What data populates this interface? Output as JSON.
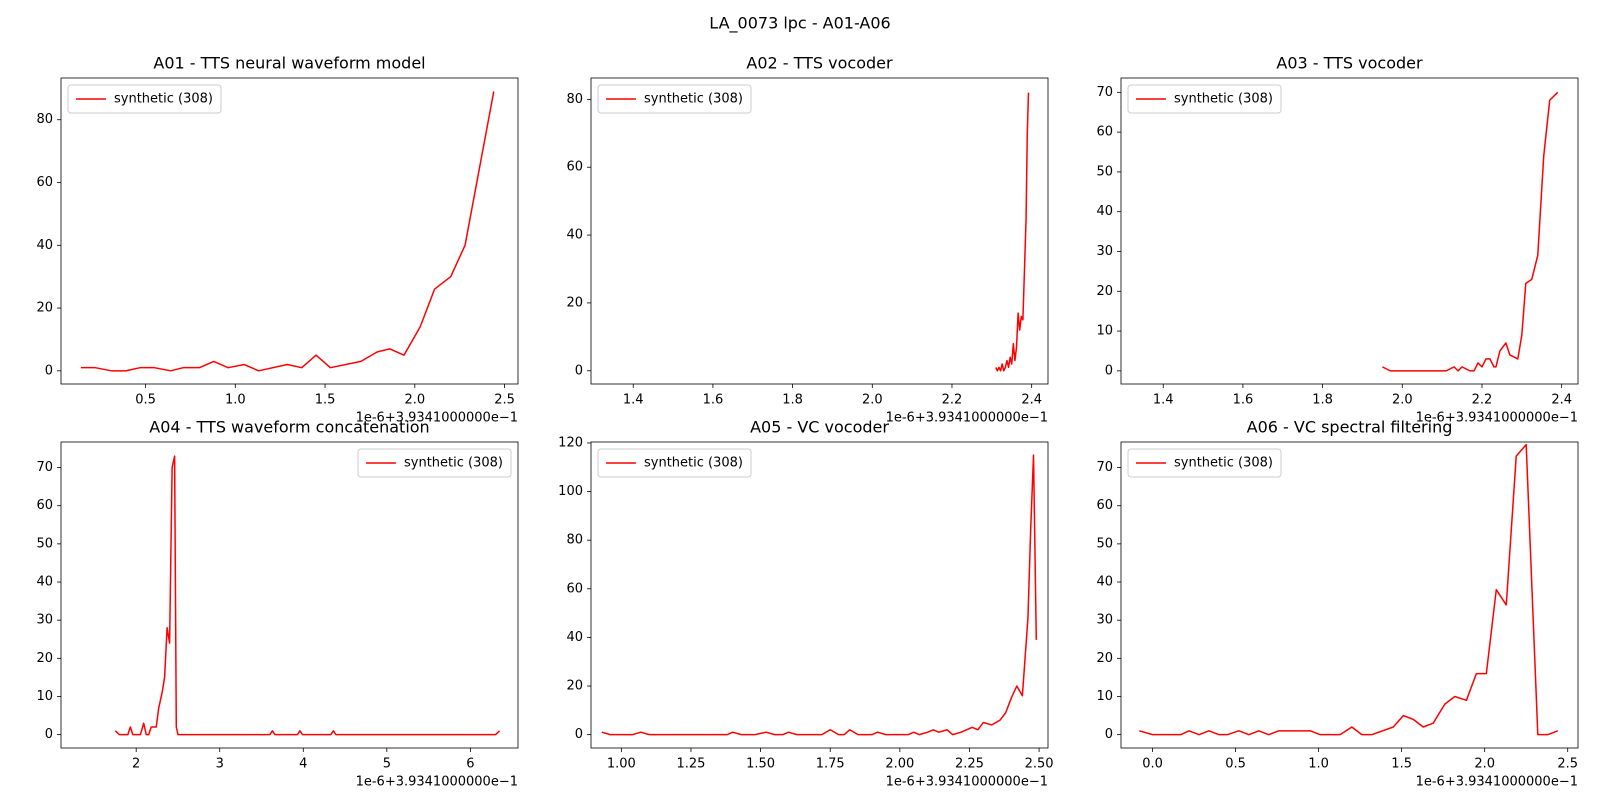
{
  "title": "LA_0073 lpc - A01-A06",
  "chart_data": [
    {
      "type": "line",
      "title": "A01 - TTS neural waveform model",
      "x_offset_label": "1e-6+3.9341000000e−1",
      "x": [
        0.14,
        0.22,
        0.31,
        0.39,
        0.47,
        0.55,
        0.64,
        0.71,
        0.8,
        0.88,
        0.96,
        1.05,
        1.13,
        1.29,
        1.37,
        1.45,
        1.53,
        1.7,
        1.79,
        1.86,
        1.94,
        2.03,
        2.11,
        2.2,
        2.28,
        2.44
      ],
      "series": [
        {
          "name": "synthetic (308)",
          "color": "#ff0000",
          "values": [
            1,
            1,
            0,
            0,
            1,
            1,
            0,
            1,
            1,
            3,
            1,
            2,
            0,
            2,
            1,
            5,
            1,
            3,
            6,
            7,
            5,
            14,
            26,
            30,
            40,
            89
          ]
        }
      ],
      "xlim": [
        0.029,
        2.575
      ],
      "ylim": [
        -4.2,
        93.3
      ],
      "xticks": [
        0.5,
        {
          "value": 1,
          "label": "1.0"
        },
        1.5,
        {
          "value": 2,
          "label": "2.0"
        },
        2.5
      ],
      "yticks": [
        0,
        20,
        40,
        60,
        80
      ],
      "legend": "upper left"
    },
    {
      "type": "line",
      "title": "A02 - TTS vocoder",
      "x_offset_label": "1e-6+3.9341000000e−1",
      "x": [
        2.31,
        2.314,
        2.318,
        2.322,
        2.326,
        2.33,
        2.334,
        2.338,
        2.342,
        2.346,
        2.35,
        2.354,
        2.358,
        2.362,
        2.366,
        2.37,
        2.374,
        2.378,
        2.386,
        2.389,
        2.392
      ],
      "series": [
        {
          "name": "synthetic (308)",
          "color": "#ff0000",
          "values": [
            1,
            0,
            1,
            0,
            2,
            0,
            1,
            3,
            1,
            4,
            2,
            8,
            3,
            7,
            17,
            12,
            16,
            15,
            45,
            70,
            82
          ]
        }
      ],
      "xlim": [
        1.294,
        2.441
      ],
      "ylim": [
        -3.9,
        86.3
      ],
      "xticks": [
        1.4,
        1.6,
        1.8,
        {
          "value": 2,
          "label": "2.0"
        },
        2.2,
        2.4
      ],
      "yticks": [
        0,
        20,
        40,
        60,
        80
      ],
      "legend": "upper left"
    },
    {
      "type": "line",
      "title": "A03 - TTS vocoder",
      "x_offset_label": "1e-6+3.9341000000e−1",
      "x": [
        1.95,
        1.97,
        2.0,
        2.03,
        2.06,
        2.09,
        2.11,
        2.13,
        2.14,
        2.15,
        2.17,
        2.18,
        2.19,
        2.2,
        2.21,
        2.22,
        2.23,
        2.235,
        2.245,
        2.26,
        2.27,
        2.29,
        2.3,
        2.31,
        2.325,
        2.34,
        2.355,
        2.37,
        2.39
      ],
      "series": [
        {
          "name": "synthetic (308)",
          "color": "#ff0000",
          "values": [
            1,
            0,
            0,
            0,
            0,
            0,
            0,
            1,
            0,
            1,
            0,
            0,
            2,
            1,
            3,
            3,
            1,
            1,
            5,
            7,
            4,
            3,
            9,
            22,
            23,
            29,
            54,
            68,
            70
          ]
        }
      ],
      "xlim": [
        1.294,
        2.441
      ],
      "ylim": [
        -3.3,
        73.6
      ],
      "xticks": [
        1.4,
        1.6,
        1.8,
        {
          "value": 2,
          "label": "2.0"
        },
        2.2,
        2.4
      ],
      "yticks": [
        0,
        10,
        20,
        30,
        40,
        50,
        60,
        70
      ],
      "legend": "upper left"
    },
    {
      "type": "line",
      "title": "A04 - TTS waveform concatenation",
      "x_offset_label": "1e-6+3.9341000000e−1",
      "x": [
        1.75,
        1.8,
        1.9,
        1.93,
        1.96,
        2.05,
        2.09,
        2.12,
        2.15,
        2.18,
        2.24,
        2.27,
        2.31,
        2.34,
        2.37,
        2.4,
        2.43,
        2.46,
        2.48,
        2.5,
        3.6,
        3.63,
        3.66,
        3.93,
        3.96,
        3.99,
        4.33,
        4.36,
        4.39,
        6.3,
        6.35
      ],
      "series": [
        {
          "name": "synthetic (308)",
          "color": "#ff0000",
          "values": [
            1,
            0,
            0,
            2,
            0,
            0,
            3,
            0,
            0,
            2,
            2,
            7,
            11,
            15,
            28,
            24,
            70,
            73,
            2,
            0,
            0,
            1,
            0,
            0,
            1,
            0,
            0,
            1,
            0,
            0,
            1
          ]
        }
      ],
      "xlim": [
        1.1,
        6.57
      ],
      "ylim": [
        -3.5,
        76.7
      ],
      "xticks": [
        2,
        3,
        4,
        5,
        6
      ],
      "yticks": [
        0,
        10,
        20,
        30,
        40,
        50,
        60,
        70
      ],
      "legend": "upper right"
    },
    {
      "type": "line",
      "title": "A05 - VC vocoder",
      "x_offset_label": "1e-6+3.9341000000e−1",
      "x": [
        0.93,
        0.96,
        1.0,
        1.04,
        1.07,
        1.1,
        1.2,
        1.3,
        1.38,
        1.4,
        1.43,
        1.48,
        1.52,
        1.55,
        1.58,
        1.6,
        1.63,
        1.72,
        1.75,
        1.78,
        1.8,
        1.82,
        1.85,
        1.9,
        1.92,
        1.95,
        2.03,
        2.05,
        2.07,
        2.1,
        2.12,
        2.14,
        2.17,
        2.19,
        2.22,
        2.26,
        2.28,
        2.3,
        2.33,
        2.36,
        2.38,
        2.4,
        2.42,
        2.44,
        2.46,
        2.47,
        2.48,
        2.49
      ],
      "series": [
        {
          "name": "synthetic (308)",
          "color": "#ff0000",
          "values": [
            1,
            0,
            0,
            0,
            1,
            0,
            0,
            0,
            0,
            1,
            0,
            0,
            1,
            0,
            0,
            1,
            0,
            0,
            2,
            0,
            0,
            2,
            0,
            0,
            1,
            0,
            0,
            1,
            0,
            1,
            2,
            1,
            2,
            0,
            1,
            3,
            2,
            5,
            4,
            6,
            9,
            15,
            20,
            16,
            48,
            85,
            115,
            39
          ]
        }
      ],
      "xlim": [
        0.891,
        2.532
      ],
      "ylim": [
        -5.5,
        120.4
      ],
      "xticks": [
        {
          "value": 1,
          "label": "1.00"
        },
        1.25,
        {
          "value": 1.5,
          "label": "1.50"
        },
        1.75,
        {
          "value": 2,
          "label": "2.00"
        },
        2.25,
        {
          "value": 2.5,
          "label": "2.50"
        }
      ],
      "yticks": [
        0,
        20,
        40,
        60,
        80,
        100,
        120
      ],
      "legend": "upper left"
    },
    {
      "type": "line",
      "title": "A06 - VC spectral filtering",
      "x_offset_label": "1e-6+3.9341000000e−1",
      "x": [
        -0.08,
        0,
        0.1,
        0.17,
        0.22,
        0.28,
        0.34,
        0.4,
        0.45,
        0.52,
        0.58,
        0.64,
        0.7,
        0.76,
        0.82,
        0.88,
        0.95,
        1.01,
        1.13,
        1.2,
        1.26,
        1.32,
        1.45,
        1.51,
        1.57,
        1.63,
        1.69,
        1.76,
        1.82,
        1.89,
        1.95,
        2.01,
        2.07,
        2.13,
        2.19,
        2.25,
        2.32,
        2.38,
        2.44
      ],
      "series": [
        {
          "name": "synthetic (308)",
          "color": "#ff0000",
          "values": [
            1,
            0,
            0,
            0,
            1,
            0,
            1,
            0,
            0,
            1,
            0,
            1,
            0,
            1,
            1,
            1,
            1,
            0,
            0,
            2,
            0,
            0,
            2,
            5,
            4,
            2,
            3,
            8,
            10,
            9,
            16,
            16,
            38,
            34,
            73,
            76,
            0,
            0,
            1
          ]
        }
      ],
      "xlim": [
        -0.19,
        2.562
      ],
      "ylim": [
        -3.5,
        76.7
      ],
      "xticks": [
        {
          "value": 0,
          "label": "0.0"
        },
        0.5,
        {
          "value": 1,
          "label": "1.0"
        },
        1.5,
        {
          "value": 2,
          "label": "2.0"
        },
        2.5
      ],
      "yticks": [
        0,
        10,
        20,
        30,
        40,
        50,
        60,
        70
      ],
      "legend": "upper left"
    }
  ]
}
